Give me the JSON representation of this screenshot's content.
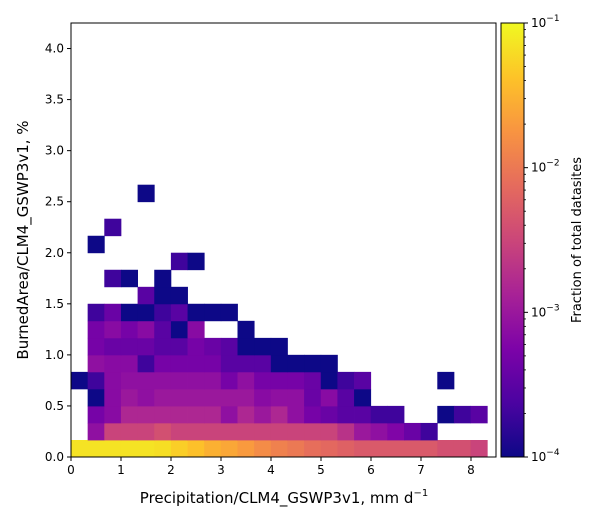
{
  "chart_data": {
    "type": "heatmap",
    "title": "",
    "xlabel": "Precipitation/CLM4_GSWP3v1,  mm d",
    "xlabel_sup": "−1",
    "ylabel": "BurnedArea/CLM4_GSWP3v1,  %",
    "xlim": [
      0,
      8.5
    ],
    "ylim": [
      0,
      4.25
    ],
    "x_ticks": [
      0,
      1,
      2,
      3,
      4,
      5,
      6,
      7,
      8
    ],
    "x_tick_labels": [
      "0",
      "1",
      "2",
      "3",
      "4",
      "5",
      "6",
      "7",
      "8"
    ],
    "y_ticks": [
      0,
      0.5,
      1,
      1.5,
      2,
      2.5,
      3,
      3.5,
      4
    ],
    "y_tick_labels": [
      "0.0",
      "0.5",
      "1.0",
      "1.5",
      "2.0",
      "2.5",
      "3.0",
      "3.5",
      "4.0"
    ],
    "bin_width_x": 0.333,
    "bin_width_y": 0.167,
    "colorscale": "plasma",
    "color_scale_type": "log",
    "colorbar": {
      "label": "Fraction of total datasites",
      "range": [
        0.0001,
        0.1
      ],
      "ticks": [
        0.0001,
        0.001,
        0.01,
        0.1
      ],
      "tick_labels": [
        {
          "base": "10",
          "exp": "−4"
        },
        {
          "base": "10",
          "exp": "−3"
        },
        {
          "base": "10",
          "exp": "−2"
        },
        {
          "base": "10",
          "exp": "−1"
        }
      ]
    },
    "grid": false,
    "rows": [
      {
        "y": 0.083,
        "values": [
          0.07,
          0.07,
          0.07,
          0.07,
          0.07,
          0.065,
          0.05,
          0.04,
          0.03,
          0.025,
          0.02,
          0.015,
          0.012,
          0.01,
          0.008,
          0.007,
          0.006,
          0.005,
          0.005,
          0.005,
          0.005,
          0.005,
          0.004,
          0.004,
          0.003
        ]
      },
      {
        "y": 0.25,
        "values": [
          null,
          0.0008,
          0.003,
          0.003,
          0.003,
          0.004,
          0.003,
          0.003,
          0.003,
          0.003,
          0.003,
          0.003,
          0.003,
          0.003,
          0.003,
          0.003,
          0.002,
          0.001,
          0.0008,
          0.0006,
          0.0004,
          0.0002,
          null,
          null,
          null
        ]
      },
      {
        "y": 0.417,
        "values": [
          null,
          0.0005,
          0.0007,
          0.0015,
          0.0015,
          0.0015,
          0.0015,
          0.0015,
          0.0015,
          0.0008,
          0.0015,
          0.001,
          0.0015,
          0.0008,
          0.0005,
          0.0004,
          0.0003,
          0.0003,
          0.0002,
          0.0002,
          null,
          null,
          0.0001,
          0.0002,
          0.0003
        ]
      },
      {
        "y": 0.583,
        "values": [
          null,
          0.0001,
          0.0007,
          0.001,
          0.0008,
          0.001,
          0.001,
          0.001,
          0.001,
          0.001,
          0.001,
          0.0007,
          0.0008,
          0.0008,
          0.0004,
          0.0007,
          0.0003,
          0.0001,
          null,
          null,
          null,
          null,
          null,
          null,
          null
        ]
      },
      {
        "y": 0.75,
        "values": [
          0.0001,
          0.0002,
          0.0007,
          0.0008,
          0.0008,
          0.0008,
          0.0008,
          0.0008,
          0.0008,
          0.0005,
          0.0008,
          0.0005,
          0.0005,
          0.0005,
          0.0004,
          0.0001,
          0.0002,
          0.0003,
          null,
          null,
          null,
          null,
          0.0001,
          null,
          null
        ]
      },
      {
        "y": 0.917,
        "values": [
          null,
          0.0008,
          0.0007,
          0.0007,
          0.0002,
          0.0005,
          0.0005,
          0.0005,
          0.0005,
          0.0003,
          0.0003,
          0.0003,
          0.0001,
          0.0001,
          0.0001,
          0.0001,
          null,
          null,
          null,
          null,
          null,
          null,
          null,
          null,
          null
        ]
      },
      {
        "y": 1.083,
        "values": [
          null,
          0.0005,
          0.0004,
          0.0004,
          0.0004,
          0.0003,
          0.0003,
          0.0005,
          0.0004,
          0.0003,
          0.0001,
          0.0001,
          0.0001,
          null,
          null,
          null,
          null,
          null,
          null,
          null,
          null,
          null,
          null,
          null,
          null
        ]
      },
      {
        "y": 1.25,
        "values": [
          null,
          0.0005,
          0.0007,
          0.0005,
          0.0007,
          0.0003,
          0.0001,
          0.0007,
          null,
          null,
          0.0001,
          null,
          null,
          null,
          null,
          null,
          null,
          null,
          null,
          null,
          null,
          null,
          null,
          null,
          null
        ]
      },
      {
        "y": 1.417,
        "values": [
          null,
          0.0002,
          0.0004,
          0.0001,
          0.0001,
          0.0002,
          0.0003,
          0.0001,
          0.0001,
          0.0001,
          null,
          null,
          null,
          null,
          null,
          null,
          null,
          null,
          null,
          null,
          null,
          null,
          null,
          null,
          null
        ]
      },
      {
        "y": 1.583,
        "values": [
          null,
          null,
          null,
          null,
          0.0003,
          0.0001,
          0.0001,
          null,
          null,
          null,
          null,
          null,
          null,
          null,
          null,
          null,
          null,
          null,
          null,
          null,
          null,
          null,
          null,
          null,
          null
        ]
      },
      {
        "y": 1.75,
        "values": [
          null,
          null,
          0.0002,
          0.0001,
          null,
          0.0001,
          null,
          null,
          null,
          null,
          null,
          null,
          null,
          null,
          null,
          null,
          null,
          null,
          null,
          null,
          null,
          null,
          null,
          null,
          null
        ]
      },
      {
        "y": 1.917,
        "values": [
          null,
          null,
          null,
          null,
          null,
          null,
          0.0002,
          0.0001,
          null,
          null,
          null,
          null,
          null,
          null,
          null,
          null,
          null,
          null,
          null,
          null,
          null,
          null,
          null,
          null,
          null
        ]
      },
      {
        "y": 2.083,
        "values": [
          null,
          0.0001,
          null,
          null,
          null,
          null,
          null,
          null,
          null,
          null,
          null,
          null,
          null,
          null,
          null,
          null,
          null,
          null,
          null,
          null,
          null,
          null,
          null,
          null,
          null
        ]
      },
      {
        "y": 2.25,
        "values": [
          null,
          null,
          0.0002,
          null,
          null,
          null,
          null,
          null,
          null,
          null,
          null,
          null,
          null,
          null,
          null,
          null,
          null,
          null,
          null,
          null,
          null,
          null,
          null,
          null,
          null
        ]
      },
      {
        "y": 2.583,
        "values": [
          null,
          null,
          null,
          null,
          0.0001,
          null,
          null,
          null,
          null,
          null,
          null,
          null,
          null,
          null,
          null,
          null,
          null,
          null,
          null,
          null,
          null,
          null,
          null,
          null,
          null
        ]
      }
    ]
  }
}
